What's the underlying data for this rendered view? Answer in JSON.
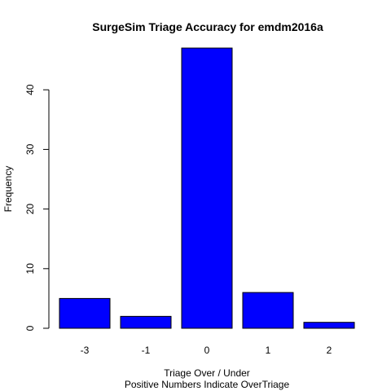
{
  "chart_data": {
    "type": "bar",
    "title": "SurgeSim Triage Accuracy for  emdm2016a",
    "xlabel": "Triage Over / Under",
    "xlabel_sub": "Positive Numbers Indicate OverTriage",
    "ylabel": "Frequency",
    "categories": [
      "-3",
      "-1",
      "0",
      "1",
      "2"
    ],
    "values": [
      5,
      2,
      47,
      6,
      1
    ],
    "yticks": [
      0,
      10,
      20,
      30,
      40
    ],
    "ylim": [
      0,
      47
    ],
    "bar_color": "#0000ff",
    "bar_edge_color": "#000000",
    "grid": false,
    "legend": "none"
  }
}
